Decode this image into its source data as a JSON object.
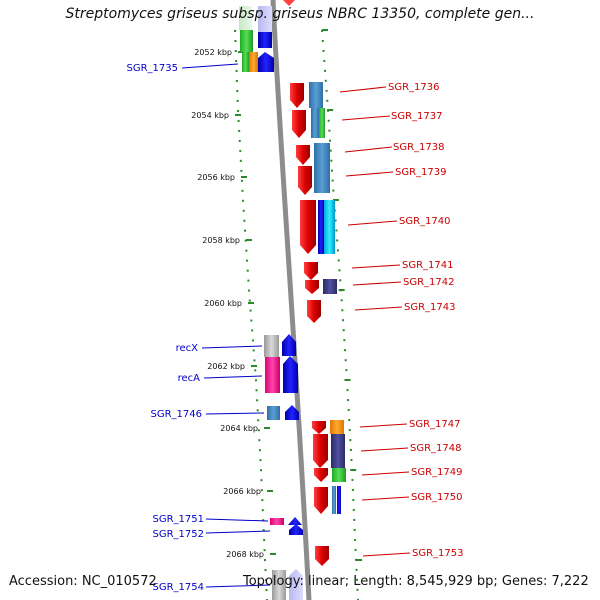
{
  "title": "Streptomyces griseus subsp. griseus NBRC 13350, complete gen...",
  "footer": {
    "accession": "Accession: NC_010572",
    "summary": "Topology: linear; Length: 8,545,929 bp; Genes: 7,222"
  },
  "colors": {
    "forward_label": "#0000cc",
    "reverse_label": "#cc0000",
    "backbone": "#8c8c8c",
    "ticks": "#2a8a2a"
  },
  "scale": [
    {
      "label": "2052 kbp"
    },
    {
      "label": "2054 kbp"
    },
    {
      "label": "2056 kbp"
    },
    {
      "label": "2058 kbp"
    },
    {
      "label": "2060 kbp"
    },
    {
      "label": "2062 kbp"
    },
    {
      "label": "2064 kbp"
    },
    {
      "label": "2066 kbp"
    },
    {
      "label": "2068 kbp"
    }
  ],
  "left_genes": [
    {
      "label": "SGR_1735"
    },
    {
      "label": "recX"
    },
    {
      "label": "recA"
    },
    {
      "label": "SGR_1746"
    },
    {
      "label": "SGR_1751"
    },
    {
      "label": "SGR_1752"
    },
    {
      "label": "SGR_1754"
    }
  ],
  "right_genes": [
    {
      "label": "SGR_1736"
    },
    {
      "label": "SGR_1737"
    },
    {
      "label": "SGR_1738"
    },
    {
      "label": "SGR_1739"
    },
    {
      "label": "SGR_1740"
    },
    {
      "label": "SGR_1741"
    },
    {
      "label": "SGR_1742"
    },
    {
      "label": "SGR_1743"
    },
    {
      "label": "SGR_1747"
    },
    {
      "label": "SGR_1748"
    },
    {
      "label": "SGR_1749"
    },
    {
      "label": "SGR_1750"
    },
    {
      "label": "SGR_1753"
    }
  ]
}
